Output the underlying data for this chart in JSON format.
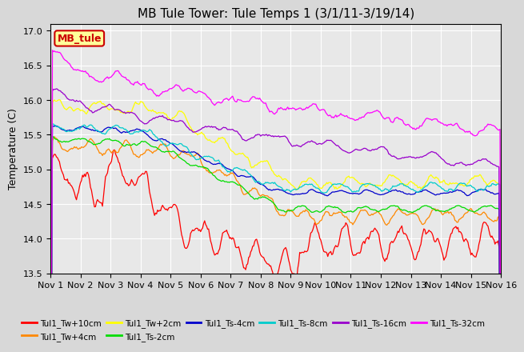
{
  "title": "MB Tule Tower: Tule Temps 1 (3/1/11-3/19/14)",
  "ylabel": "Temperature (C)",
  "ylim": [
    13.5,
    17.1
  ],
  "yticks": [
    13.5,
    14.0,
    14.5,
    15.0,
    15.5,
    16.0,
    16.5,
    17.0
  ],
  "xlim": [
    0,
    450
  ],
  "xtick_labels": [
    "Nov 1",
    "Nov 2",
    "Nov 3",
    "Nov 4",
    "Nov 5",
    "Nov 6",
    "Nov 7",
    "Nov 8",
    "Nov 9",
    "Nov 10",
    "Nov 11",
    "Nov 12",
    "Nov 13",
    "Nov 14",
    "Nov 15",
    "Nov 16"
  ],
  "xtick_positions": [
    0,
    30,
    60,
    90,
    120,
    150,
    180,
    210,
    240,
    270,
    300,
    330,
    360,
    390,
    420,
    450
  ],
  "series": [
    {
      "label": "Tul1_Tw+10cm",
      "color": "#ff0000",
      "shape": "red"
    },
    {
      "label": "Tul1_Tw+4cm",
      "color": "#ff8800",
      "shape": "orange"
    },
    {
      "label": "Tul1_Tw+2cm",
      "color": "#ffff00",
      "shape": "yellow"
    },
    {
      "label": "Tul1_Ts-2cm",
      "color": "#00dd00",
      "shape": "green"
    },
    {
      "label": "Tul1_Ts-4cm",
      "color": "#0000cc",
      "shape": "blue"
    },
    {
      "label": "Tul1_Ts-8cm",
      "color": "#00cccc",
      "shape": "cyan"
    },
    {
      "label": "Tul1_Ts-16cm",
      "color": "#9900cc",
      "shape": "purple"
    },
    {
      "label": "Tul1_Ts-32cm",
      "color": "#ff00ff",
      "shape": "magenta"
    }
  ],
  "n_points": 451,
  "background_color": "#d8d8d8",
  "plot_bg_color": "#e8e8e8",
  "legend_box_color": "#ffff99",
  "legend_box_edge": "#cc0000",
  "legend_text": "MB_tule",
  "legend_text_color": "#cc0000",
  "grid_color": "#ffffff",
  "title_fontsize": 11,
  "axis_fontsize": 9,
  "tick_fontsize": 8
}
